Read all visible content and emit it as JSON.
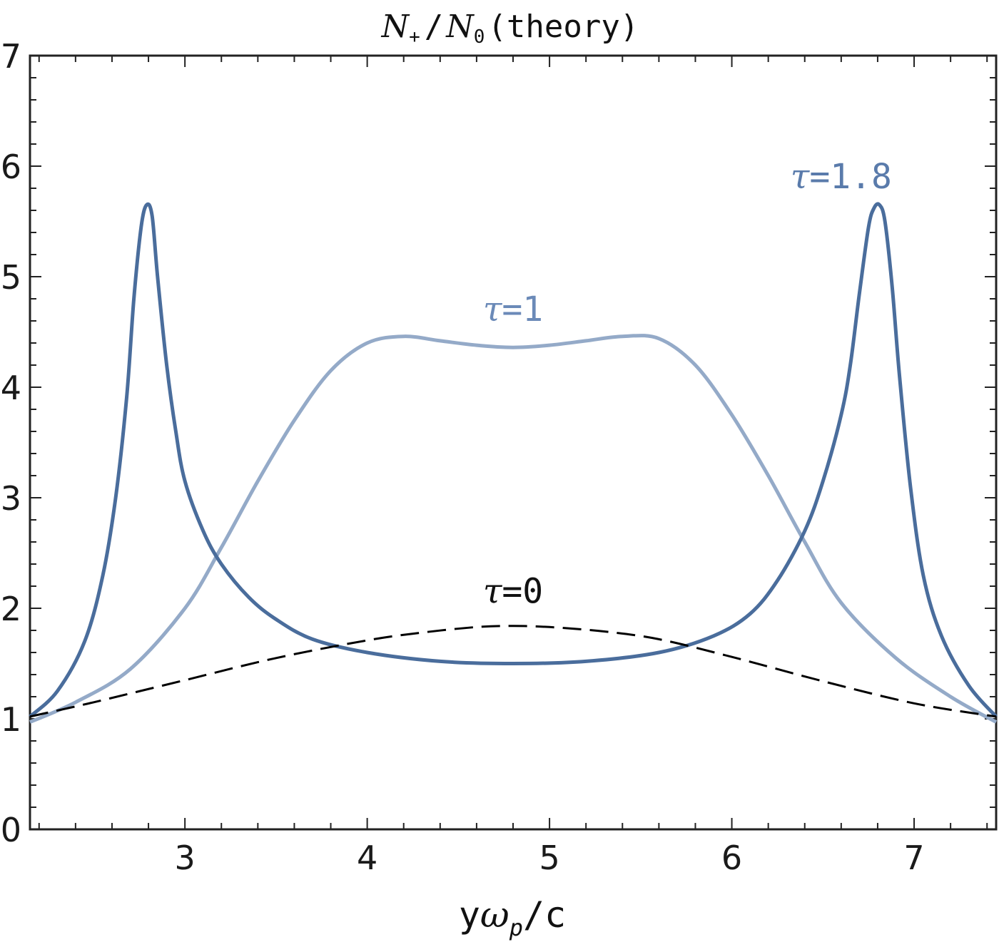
{
  "chart_data": {
    "type": "line",
    "title": {
      "N1": "N",
      "N1_sub": "+",
      "slash": "/",
      "N2": "N",
      "N2_sub": "0",
      "rest": "(theory)"
    },
    "xlabel": {
      "y": "y",
      "omega": "ω",
      "omega_sub": "p",
      "rest": "/c"
    },
    "xlim": [
      2.15,
      7.45
    ],
    "ylim": [
      0,
      7
    ],
    "xticks": [
      3,
      4,
      5,
      6,
      7
    ],
    "yticks": [
      0,
      1,
      2,
      3,
      4,
      5,
      6,
      7
    ],
    "grid": false,
    "colors": {
      "tau0": "#000000",
      "tau1": "#94aac8",
      "tau18": "#4a6d9c",
      "axis": "#222222"
    },
    "series": [
      {
        "name": "τ=0",
        "style": "dashed",
        "x": [
          2.15,
          2.5,
          3.0,
          3.5,
          4.0,
          4.3,
          4.6,
          4.8,
          5.0,
          5.3,
          5.6,
          6.0,
          6.5,
          7.0,
          7.45
        ],
        "y": [
          1.02,
          1.15,
          1.35,
          1.55,
          1.71,
          1.78,
          1.83,
          1.84,
          1.83,
          1.79,
          1.72,
          1.56,
          1.34,
          1.14,
          1.02
        ]
      },
      {
        "name": "τ=1",
        "style": "solid",
        "x": [
          2.15,
          2.4,
          2.7,
          3.0,
          3.2,
          3.4,
          3.6,
          3.8,
          4.0,
          4.2,
          4.4,
          4.6,
          4.8,
          5.0,
          5.2,
          5.4,
          5.6,
          5.8,
          6.0,
          6.2,
          6.4,
          6.6,
          6.9,
          7.2,
          7.45
        ],
        "y": [
          0.97,
          1.15,
          1.45,
          2.0,
          2.55,
          3.15,
          3.7,
          4.15,
          4.4,
          4.46,
          4.42,
          4.38,
          4.36,
          4.38,
          4.42,
          4.46,
          4.44,
          4.2,
          3.75,
          3.2,
          2.6,
          2.05,
          1.55,
          1.2,
          0.97
        ]
      },
      {
        "name": "τ=1.8",
        "style": "solid",
        "x": [
          2.15,
          2.3,
          2.45,
          2.55,
          2.62,
          2.68,
          2.72,
          2.76,
          2.79,
          2.82,
          2.85,
          2.9,
          2.95,
          3.0,
          3.1,
          3.2,
          3.35,
          3.5,
          3.7,
          4.0,
          4.4,
          4.8,
          5.2,
          5.6,
          5.9,
          6.1,
          6.25,
          6.4,
          6.5,
          6.6,
          6.65,
          6.7,
          6.75,
          6.78,
          6.81,
          6.84,
          6.88,
          6.92,
          6.98,
          7.05,
          7.15,
          7.3,
          7.45
        ],
        "y": [
          1.02,
          1.25,
          1.7,
          2.3,
          3.0,
          3.9,
          4.8,
          5.45,
          5.65,
          5.55,
          5.0,
          4.2,
          3.6,
          3.15,
          2.7,
          2.4,
          2.1,
          1.9,
          1.72,
          1.6,
          1.52,
          1.5,
          1.52,
          1.6,
          1.75,
          1.95,
          2.25,
          2.7,
          3.15,
          3.75,
          4.2,
          4.85,
          5.45,
          5.62,
          5.65,
          5.5,
          4.9,
          4.1,
          3.1,
          2.3,
          1.75,
          1.3,
          1.02
        ]
      }
    ],
    "annotations": [
      {
        "text_tau": "τ",
        "text_rest": "=0",
        "series": "tau0",
        "x": 4.8,
        "y": 2.05
      },
      {
        "text_tau": "τ",
        "text_rest": "=1",
        "series": "tau1",
        "x": 4.8,
        "y": 4.6
      },
      {
        "text_tau": "τ",
        "text_rest": "=1.8",
        "series": "tau18",
        "x": 6.6,
        "y": 5.8
      }
    ]
  }
}
